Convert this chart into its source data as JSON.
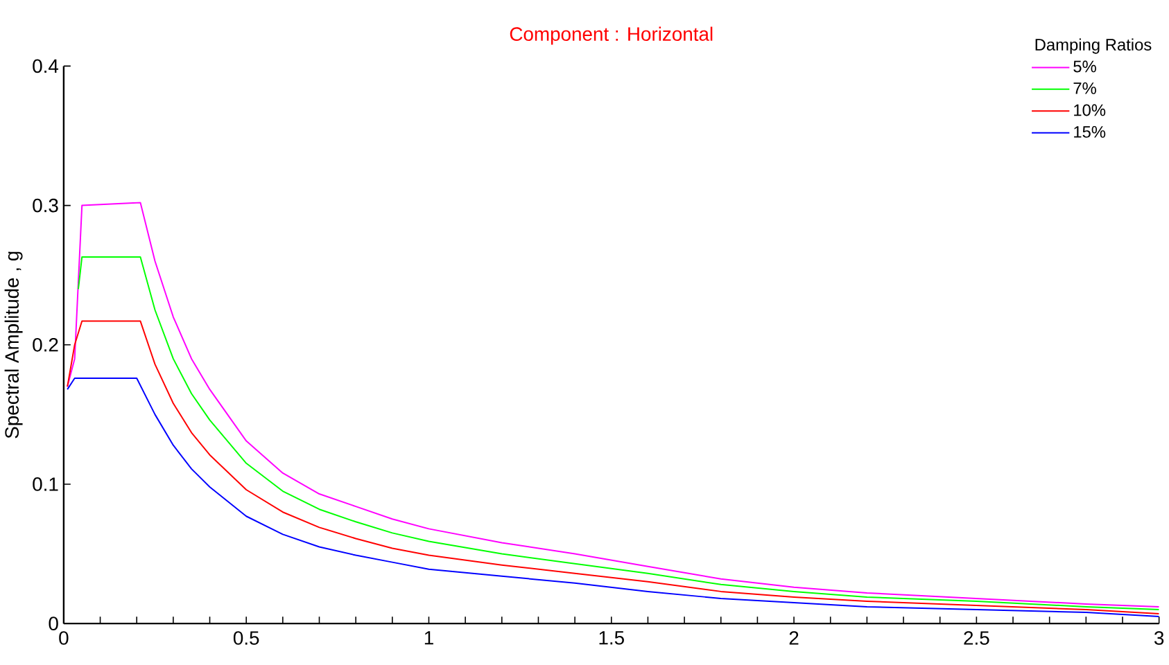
{
  "chart_data": {
    "type": "line",
    "title": "Component : Horizontal",
    "ylabel": "Spectral Amplitude , g",
    "legend_title": "Damping Ratios",
    "legend": "top right",
    "line_style": "solid",
    "marker": "none",
    "xlim": [
      0,
      3
    ],
    "ylim": [
      0,
      0.4
    ],
    "xticks": [
      0,
      {
        "value": 0.1,
        "label": null
      },
      {
        "value": 0.2,
        "label": null
      },
      {
        "value": 0.3,
        "label": null
      },
      {
        "value": 0.4,
        "label": null
      },
      0.5,
      {
        "value": 0.6,
        "label": null
      },
      {
        "value": 0.7,
        "label": null
      },
      {
        "value": 0.8,
        "label": null
      },
      {
        "value": 0.9,
        "label": null
      },
      1,
      {
        "value": 1.1,
        "label": null
      },
      {
        "value": 1.2,
        "label": null
      },
      {
        "value": 1.3,
        "label": null
      },
      {
        "value": 1.4,
        "label": null
      },
      1.5,
      {
        "value": 1.6,
        "label": null
      },
      {
        "value": 1.7,
        "label": null
      },
      {
        "value": 1.8,
        "label": null
      },
      {
        "value": 1.9,
        "label": null
      },
      2,
      {
        "value": 2.1,
        "label": null
      },
      {
        "value": 2.2,
        "label": null
      },
      {
        "value": 2.3,
        "label": null
      },
      {
        "value": 2.4,
        "label": null
      },
      2.5,
      {
        "value": 2.6,
        "label": null
      },
      {
        "value": 2.7,
        "label": null
      },
      {
        "value": 2.8,
        "label": null
      },
      {
        "value": 2.9,
        "label": null
      },
      3
    ],
    "yticks": [
      0,
      0.1,
      0.2,
      0.3,
      0.4
    ],
    "series": [
      {
        "name": "5%",
        "color": "#ff00ff",
        "x": [
          0.01,
          0.03,
          0.05,
          0.21,
          0.25,
          0.3,
          0.35,
          0.4,
          0.5,
          0.6,
          0.7,
          0.8,
          0.9,
          1.0,
          1.2,
          1.4,
          1.6,
          1.8,
          2.0,
          2.2,
          2.5,
          2.8,
          3.0
        ],
        "values": [
          0.17,
          0.19,
          0.3,
          0.302,
          0.26,
          0.22,
          0.19,
          0.168,
          0.131,
          0.108,
          0.093,
          0.084,
          0.075,
          0.068,
          0.058,
          0.05,
          0.041,
          0.032,
          0.026,
          0.022,
          0.018,
          0.014,
          0.012
        ]
      },
      {
        "name": "7%",
        "color": "#00ff00",
        "x": [
          0.04,
          0.05,
          0.21,
          0.25,
          0.3,
          0.35,
          0.4,
          0.5,
          0.6,
          0.7,
          0.8,
          0.9,
          1.0,
          1.2,
          1.4,
          1.6,
          1.8,
          2.0,
          2.2,
          2.5,
          2.8,
          3.0
        ],
        "values": [
          0.24,
          0.263,
          0.263,
          0.225,
          0.19,
          0.165,
          0.146,
          0.115,
          0.095,
          0.082,
          0.073,
          0.065,
          0.059,
          0.05,
          0.043,
          0.036,
          0.028,
          0.023,
          0.019,
          0.016,
          0.012,
          0.01
        ]
      },
      {
        "name": "10%",
        "color": "#ff0000",
        "x": [
          0.01,
          0.03,
          0.05,
          0.21,
          0.25,
          0.3,
          0.35,
          0.4,
          0.5,
          0.6,
          0.7,
          0.8,
          0.9,
          1.0,
          1.2,
          1.4,
          1.6,
          1.8,
          2.0,
          2.2,
          2.5,
          2.8,
          3.0
        ],
        "values": [
          0.17,
          0.2,
          0.217,
          0.217,
          0.186,
          0.158,
          0.137,
          0.121,
          0.096,
          0.08,
          0.069,
          0.061,
          0.054,
          0.049,
          0.042,
          0.036,
          0.03,
          0.023,
          0.019,
          0.016,
          0.013,
          0.01,
          0.007
        ]
      },
      {
        "name": "15%",
        "color": "#0000ff",
        "x": [
          0.01,
          0.03,
          0.2,
          0.25,
          0.3,
          0.35,
          0.4,
          0.5,
          0.6,
          0.7,
          0.8,
          0.9,
          1.0,
          1.2,
          1.4,
          1.6,
          1.8,
          2.0,
          2.2,
          2.5,
          2.8,
          3.0
        ],
        "values": [
          0.168,
          0.176,
          0.176,
          0.15,
          0.128,
          0.111,
          0.098,
          0.077,
          0.064,
          0.055,
          0.049,
          0.044,
          0.039,
          0.034,
          0.029,
          0.023,
          0.018,
          0.015,
          0.012,
          0.01,
          0.008,
          0.005
        ]
      }
    ]
  }
}
